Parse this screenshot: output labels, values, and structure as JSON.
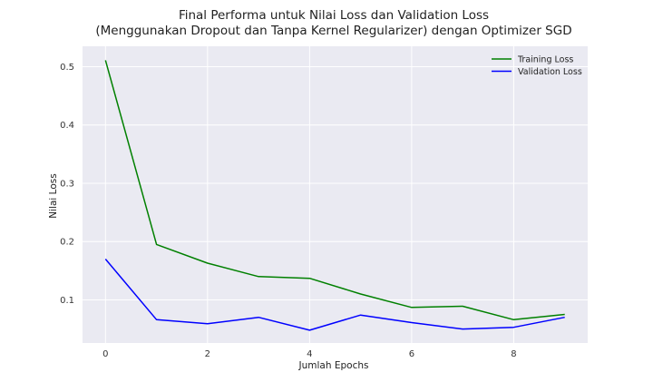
{
  "chart_data": {
    "type": "line",
    "title": "Final Performa untuk Nilai Loss dan Validation Loss",
    "subtitle": "(Menggunakan Dropout dan Tanpa Kernel Regularizer) dengan Optimizer SGD",
    "xlabel": "Jumlah Epochs",
    "ylabel": "Nilai Loss",
    "x": [
      0,
      1,
      2,
      3,
      4,
      5,
      6,
      7,
      8,
      9
    ],
    "series": [
      {
        "name": "Training Loss",
        "color": "#008000",
        "values": [
          0.511,
          0.195,
          0.163,
          0.14,
          0.137,
          0.11,
          0.087,
          0.089,
          0.066,
          0.075
        ]
      },
      {
        "name": "Validation Loss",
        "color": "#0000ff",
        "values": [
          0.17,
          0.066,
          0.059,
          0.07,
          0.048,
          0.074,
          0.061,
          0.05,
          0.053,
          0.07
        ]
      }
    ],
    "xlim": [
      -0.45,
      9.45
    ],
    "ylim": [
      0.026,
      0.535
    ],
    "xticks": [
      "0",
      "2",
      "4",
      "6",
      "8"
    ],
    "yticks": [
      "0.1",
      "0.2",
      "0.3",
      "0.4",
      "0.5"
    ],
    "grid": true,
    "legend_position": "top-right",
    "background_color": "#eaeaf2",
    "grid_color": "#ffffff"
  }
}
